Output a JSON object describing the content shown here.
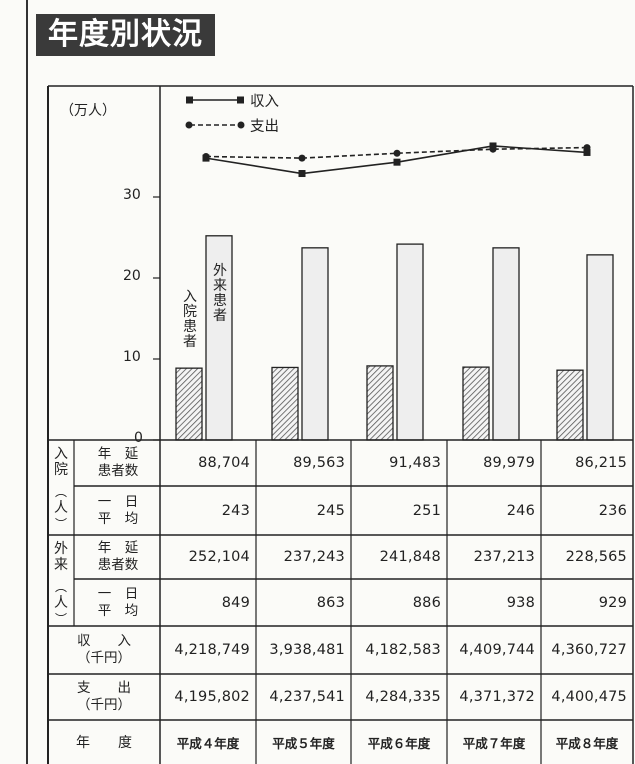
{
  "title": "年度別状況",
  "chart_data": {
    "type": "bar",
    "units": "（万人）",
    "y_ticks": [
      "0",
      "10",
      "20",
      "30"
    ],
    "ylim": [
      0,
      40
    ],
    "categories": [
      "平成４年度",
      "平成５年度",
      "平成６年度",
      "平成７年度",
      "平成８年度"
    ],
    "bars": {
      "inpatient": {
        "label": "入院患者",
        "values": [
          8.8704,
          8.9563,
          9.1483,
          8.9979,
          8.6215
        ]
      },
      "outpatient": {
        "label": "外来患者",
        "values": [
          25.2104,
          23.7243,
          24.1848,
          23.7213,
          22.8565
        ]
      }
    },
    "lines": {
      "income": {
        "label": "収入",
        "style": "solid",
        "values": [
          34.8,
          32.9,
          34.3,
          36.3,
          35.5
        ]
      },
      "expenditure": {
        "label": "支出",
        "style": "dashed",
        "values": [
          35.0,
          34.8,
          35.4,
          35.9,
          36.1
        ]
      }
    }
  },
  "table": {
    "columns": [
      "平成４年度",
      "平成５年度",
      "平成６年度",
      "平成７年度",
      "平成８年度"
    ],
    "year_label": "年　　度",
    "groups": [
      {
        "group_top": "入院",
        "group_bottom": "（人）",
        "rows": [
          {
            "label_l1": "年　延",
            "label_l2": "患者数",
            "values": [
              "88,704",
              "89,563",
              "91,483",
              "89,979",
              "86,215"
            ]
          },
          {
            "label_l1": "一　日",
            "label_l2": "平　均",
            "values": [
              "243",
              "245",
              "251",
              "246",
              "236"
            ]
          }
        ]
      },
      {
        "group_top": "外来",
        "group_bottom": "（人）",
        "rows": [
          {
            "label_l1": "年　延",
            "label_l2": "患者数",
            "values": [
              "252,104",
              "237,243",
              "241,848",
              "237,213",
              "228,565"
            ]
          },
          {
            "label_l1": "一　日",
            "label_l2": "平　均",
            "values": [
              "849",
              "863",
              "886",
              "938",
              "929"
            ]
          }
        ]
      }
    ],
    "money_rows": [
      {
        "label_l1": "収　　入",
        "label_l2": "（千円）",
        "values": [
          "4,218,749",
          "3,938,481",
          "4,182,583",
          "4,409,744",
          "4,360,727"
        ]
      },
      {
        "label_l1": "支　　出",
        "label_l2": "（千円）",
        "values": [
          "4,195,802",
          "4,237,541",
          "4,284,335",
          "4,371,372",
          "4,400,475"
        ]
      }
    ]
  },
  "colors": {
    "ink": "#222222",
    "hatch": "#555555",
    "bar_fill": "#eeeeee",
    "title_bg": "#3a3a3a"
  }
}
